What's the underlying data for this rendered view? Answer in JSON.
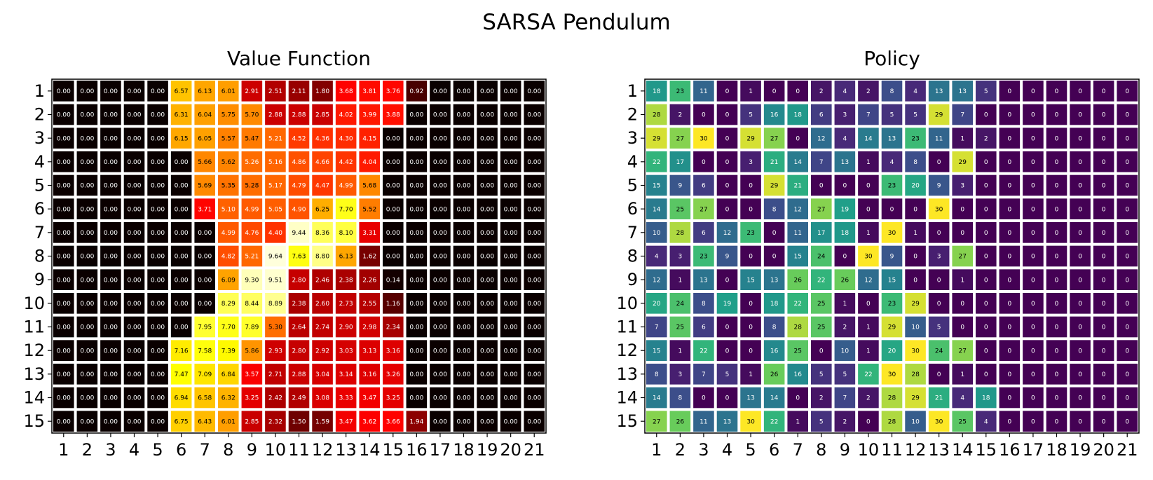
{
  "figure_title": "SARSA Pendulum",
  "chart_data": [
    {
      "type": "heatmap",
      "title": "Value Function",
      "colormap": "hot",
      "vmin": 0,
      "vmax": 10,
      "cell_label_format": "2 decimals",
      "xticks": [
        "1",
        "2",
        "3",
        "4",
        "5",
        "6",
        "7",
        "8",
        "9",
        "10",
        "11",
        "12",
        "13",
        "14",
        "15",
        "16",
        "17",
        "18",
        "19",
        "20",
        "21"
      ],
      "yticks": [
        "1",
        "2",
        "3",
        "4",
        "5",
        "6",
        "7",
        "8",
        "9",
        "10",
        "11",
        "12",
        "13",
        "14",
        "15"
      ],
      "values": [
        [
          0,
          0,
          0,
          0,
          0,
          6.57,
          6.13,
          6.01,
          2.91,
          2.51,
          2.11,
          1.8,
          3.68,
          3.81,
          3.76,
          0.92,
          0,
          0,
          0,
          0,
          0
        ],
        [
          0,
          0,
          0,
          0,
          0,
          6.31,
          6.04,
          5.75,
          5.7,
          2.88,
          2.88,
          2.85,
          4.02,
          3.99,
          3.88,
          0,
          0,
          0,
          0,
          0,
          0
        ],
        [
          0,
          0,
          0,
          0,
          0,
          6.15,
          6.05,
          5.57,
          5.47,
          5.21,
          4.52,
          4.36,
          4.3,
          4.15,
          0,
          0,
          0,
          0,
          0,
          0,
          0
        ],
        [
          0,
          0,
          0,
          0,
          0,
          0,
          5.66,
          5.62,
          5.26,
          5.16,
          4.86,
          4.66,
          4.42,
          4.04,
          0,
          0,
          0,
          0,
          0,
          0,
          0
        ],
        [
          0,
          0,
          0,
          0,
          0,
          0,
          5.69,
          5.35,
          5.28,
          5.17,
          4.79,
          4.47,
          4.99,
          5.68,
          0,
          0,
          0,
          0,
          0,
          0,
          0
        ],
        [
          0,
          0,
          0,
          0,
          0,
          0,
          3.71,
          5.1,
          4.99,
          5.05,
          4.9,
          6.25,
          7.7,
          5.52,
          0,
          0,
          0,
          0,
          0,
          0,
          0
        ],
        [
          0,
          0,
          0,
          0,
          0,
          0,
          0,
          4.99,
          4.76,
          4.4,
          9.44,
          8.36,
          8.1,
          3.31,
          0,
          0,
          0,
          0,
          0,
          0,
          0
        ],
        [
          0,
          0,
          0,
          0,
          0,
          0,
          0,
          4.82,
          5.21,
          9.64,
          7.63,
          8.8,
          6.13,
          1.62,
          0,
          0,
          0,
          0,
          0,
          0,
          0
        ],
        [
          0,
          0,
          0,
          0,
          0,
          0,
          0,
          6.09,
          9.3,
          9.51,
          2.8,
          2.46,
          2.38,
          2.26,
          0.14,
          0,
          0,
          0,
          0,
          0,
          0
        ],
        [
          0,
          0,
          0,
          0,
          0,
          0,
          0,
          8.29,
          8.44,
          8.89,
          2.38,
          2.6,
          2.73,
          2.55,
          1.16,
          0,
          0,
          0,
          0,
          0,
          0
        ],
        [
          0,
          0,
          0,
          0,
          0,
          0,
          7.95,
          7.7,
          7.89,
          5.3,
          2.64,
          2.74,
          2.9,
          2.98,
          2.34,
          0,
          0,
          0,
          0,
          0,
          0
        ],
        [
          0,
          0,
          0,
          0,
          0,
          7.16,
          7.58,
          7.39,
          5.86,
          2.93,
          2.8,
          2.92,
          3.03,
          3.13,
          3.16,
          0,
          0,
          0,
          0,
          0,
          0
        ],
        [
          0,
          0,
          0,
          0,
          0,
          7.47,
          7.09,
          6.84,
          3.57,
          2.71,
          2.88,
          3.04,
          3.14,
          3.16,
          3.26,
          0,
          0,
          0,
          0,
          0,
          0
        ],
        [
          0,
          0,
          0,
          0,
          0,
          6.94,
          6.58,
          6.32,
          3.25,
          2.42,
          2.49,
          3.08,
          3.33,
          3.47,
          3.25,
          0,
          0,
          0,
          0,
          0,
          0
        ],
        [
          0,
          0,
          0,
          0,
          0,
          6.75,
          6.43,
          6.01,
          2.85,
          2.32,
          1.5,
          1.59,
          3.47,
          3.62,
          3.66,
          1.94,
          0,
          0,
          0,
          0,
          0
        ]
      ]
    },
    {
      "type": "heatmap",
      "title": "Policy",
      "colormap": "viridis",
      "vmin": 0,
      "vmax": 30,
      "cell_label_format": "integer",
      "xticks": [
        "1",
        "2",
        "3",
        "4",
        "5",
        "6",
        "7",
        "8",
        "9",
        "10",
        "11",
        "12",
        "13",
        "14",
        "15",
        "16",
        "17",
        "18",
        "19",
        "20",
        "21"
      ],
      "yticks": [
        "1",
        "2",
        "3",
        "4",
        "5",
        "6",
        "7",
        "8",
        "9",
        "10",
        "11",
        "12",
        "13",
        "14",
        "15"
      ],
      "values": [
        [
          18,
          23,
          11,
          0,
          1,
          0,
          0,
          2,
          4,
          2,
          8,
          4,
          13,
          13,
          5,
          0,
          0,
          0,
          0,
          0,
          0
        ],
        [
          28,
          2,
          0,
          0,
          5,
          16,
          18,
          6,
          3,
          7,
          5,
          5,
          29,
          7,
          0,
          0,
          0,
          0,
          0,
          0,
          0
        ],
        [
          29,
          27,
          30,
          0,
          29,
          27,
          0,
          12,
          4,
          14,
          13,
          23,
          11,
          1,
          2,
          0,
          0,
          0,
          0,
          0,
          0
        ],
        [
          22,
          17,
          0,
          0,
          3,
          21,
          14,
          7,
          13,
          1,
          4,
          8,
          0,
          29,
          0,
          0,
          0,
          0,
          0,
          0,
          0
        ],
        [
          15,
          9,
          6,
          0,
          0,
          29,
          21,
          0,
          0,
          0,
          23,
          20,
          9,
          3,
          0,
          0,
          0,
          0,
          0,
          0,
          0
        ],
        [
          14,
          25,
          27,
          0,
          0,
          8,
          12,
          27,
          19,
          0,
          0,
          0,
          30,
          0,
          0,
          0,
          0,
          0,
          0,
          0,
          0
        ],
        [
          10,
          28,
          6,
          12,
          23,
          0,
          11,
          17,
          18,
          1,
          30,
          1,
          0,
          0,
          0,
          0,
          0,
          0,
          0,
          0,
          0
        ],
        [
          4,
          3,
          23,
          9,
          0,
          0,
          15,
          24,
          0,
          30,
          9,
          0,
          3,
          27,
          0,
          0,
          0,
          0,
          0,
          0,
          0
        ],
        [
          12,
          1,
          13,
          0,
          15,
          13,
          26,
          22,
          26,
          12,
          15,
          0,
          0,
          1,
          0,
          0,
          0,
          0,
          0,
          0,
          0
        ],
        [
          20,
          24,
          8,
          19,
          0,
          18,
          22,
          25,
          1,
          0,
          23,
          29,
          0,
          0,
          0,
          0,
          0,
          0,
          0,
          0,
          0
        ],
        [
          7,
          25,
          6,
          0,
          0,
          8,
          28,
          25,
          2,
          1,
          29,
          10,
          5,
          0,
          0,
          0,
          0,
          0,
          0,
          0,
          0
        ],
        [
          15,
          1,
          22,
          0,
          0,
          16,
          25,
          0,
          10,
          1,
          20,
          30,
          24,
          27,
          0,
          0,
          0,
          0,
          0,
          0,
          0
        ],
        [
          8,
          3,
          7,
          5,
          1,
          26,
          16,
          5,
          5,
          22,
          30,
          28,
          0,
          1,
          0,
          0,
          0,
          0,
          0,
          0,
          0
        ],
        [
          14,
          8,
          0,
          0,
          13,
          14,
          0,
          2,
          7,
          2,
          28,
          29,
          21,
          4,
          18,
          0,
          0,
          0,
          0,
          0,
          0
        ],
        [
          27,
          26,
          11,
          13,
          30,
          22,
          1,
          5,
          2,
          0,
          28,
          10,
          30,
          25,
          4,
          0,
          0,
          0,
          0,
          0,
          0
        ]
      ]
    }
  ]
}
